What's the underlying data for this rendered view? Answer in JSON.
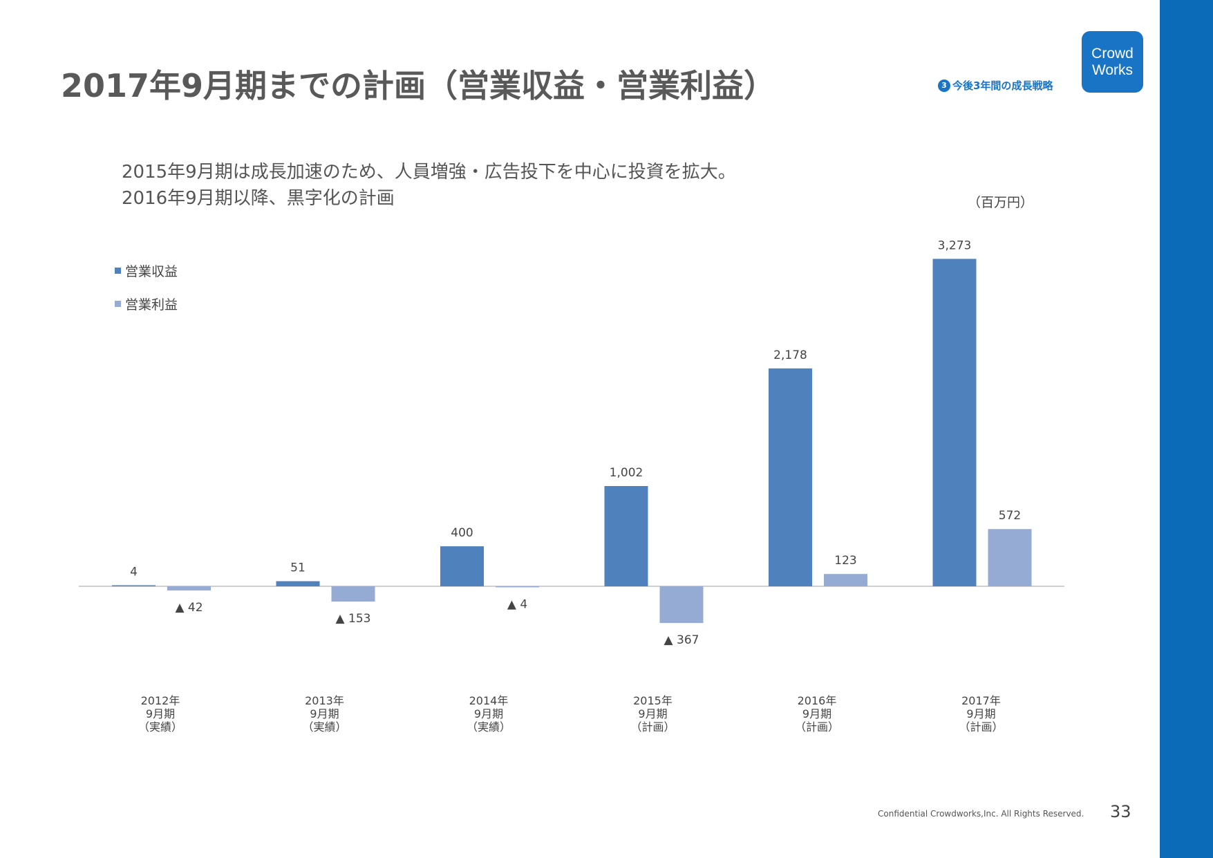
{
  "header": {
    "title": "2017年9月期までの計画（営業収益・営業利益）",
    "section_number": "3",
    "section_label": "今後3年間の成長戦略",
    "logo_line1": "Crowd",
    "logo_line2": "Works"
  },
  "subtitle": {
    "line1": "2015年9月期は成長加速のため、人員増強・広告投下を中心に投資を拡大。",
    "line2": "2016年9月期以降、黒字化の計画"
  },
  "unit_label": "（百万円）",
  "colors": {
    "revenue": "#4f81bd",
    "profit": "#95abd4",
    "accent": "#0b6bb8"
  },
  "chart_data": {
    "type": "bar",
    "categories": [
      [
        "2012年",
        "9月期",
        "（実績）"
      ],
      [
        "2013年",
        "9月期",
        "（実績）"
      ],
      [
        "2014年",
        "9月期",
        "（実績）"
      ],
      [
        "2015年",
        "9月期",
        "（計画）"
      ],
      [
        "2016年",
        "9月期",
        "（計画）"
      ],
      [
        "2017年",
        "9月期",
        "（計画）"
      ]
    ],
    "series": [
      {
        "name": "営業収益",
        "values": [
          4,
          51,
          400,
          1002,
          2178,
          3273
        ],
        "labels": [
          "4",
          "51",
          "400",
          "1,002",
          "2,178",
          "3,273"
        ]
      },
      {
        "name": "営業利益",
        "values": [
          -42,
          -153,
          -4,
          -367,
          123,
          572
        ],
        "labels": [
          "▲ 42",
          "▲ 153",
          "▲ 4",
          "▲ 367",
          "123",
          "572"
        ]
      }
    ],
    "ylim": [
      -800,
      3500
    ],
    "legend_position": "top-left",
    "grid": false
  },
  "footer": {
    "copyright": "Confidential Crowdworks,Inc. All Rights Reserved.",
    "page": "33"
  }
}
